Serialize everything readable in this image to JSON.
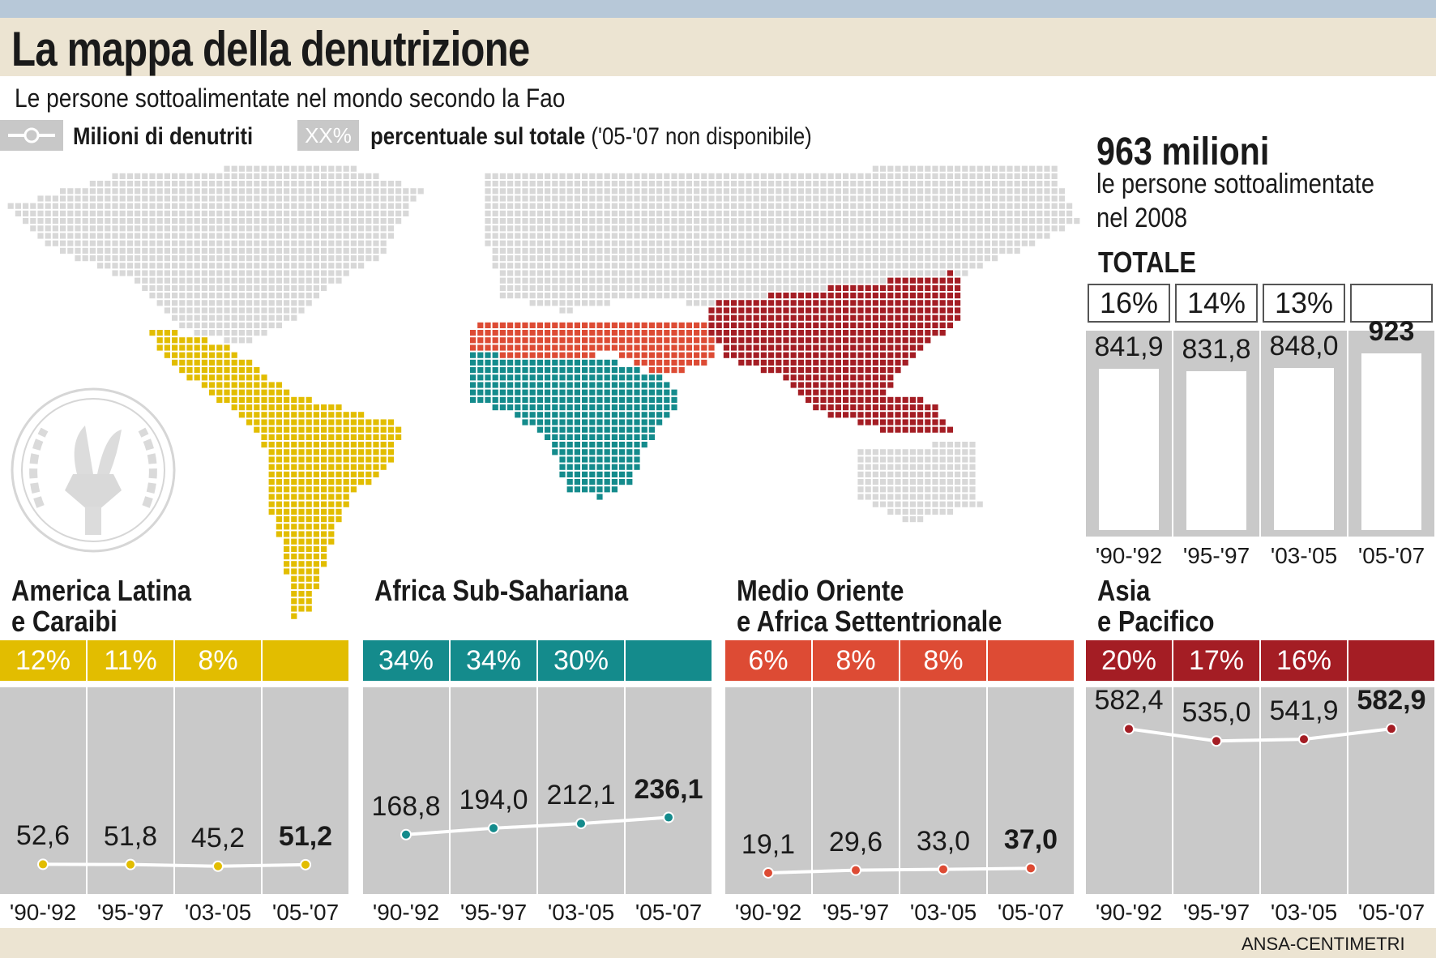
{
  "title": "La mappa della denutrizione",
  "subtitle": "Le persone sottoalimentate nel mondo secondo la Fao",
  "legend": {
    "line_label": "Milioni di denutriti",
    "pct_key": "XX%",
    "pct_label": "percentuale sul totale",
    "pct_note": "('05-'07 non disponibile)"
  },
  "summary": {
    "headline": "963 milioni",
    "line1": "le persone sottoalimentate",
    "line2": "nel 2008"
  },
  "credit": "ANSA-CENTIMETRI",
  "colors": {
    "latam": "#e2bd00",
    "africa": "#148b8c",
    "mena": "#dd4b34",
    "asia": "#a41d24",
    "map_grey": "#d8d8d8",
    "panel_grey": "#c9c9c9"
  },
  "periods": [
    "'90-'92",
    "'95-'97",
    "'03-'05",
    "'05-'07"
  ],
  "chart_data": [
    {
      "type": "bar",
      "title": "TOTALE",
      "categories": [
        "'90-'92",
        "'95-'97",
        "'03-'05",
        "'05-'07"
      ],
      "values": [
        841.9,
        831.8,
        848.0,
        923
      ],
      "value_labels": [
        "841,9",
        "831,8",
        "848,0",
        "923"
      ],
      "percent_labels": [
        "16%",
        "14%",
        "13%",
        ""
      ],
      "ylim": [
        0,
        1000
      ]
    },
    {
      "type": "line",
      "title": "America Latina e Caraibi",
      "title_lines": [
        "America Latina",
        "e Caraibi"
      ],
      "color": "#e2bd00",
      "categories": [
        "'90-'92",
        "'95-'97",
        "'03-'05",
        "'05-'07"
      ],
      "values": [
        52.6,
        51.8,
        45.2,
        51.2
      ],
      "value_labels": [
        "52,6",
        "51,8",
        "45,2",
        "51,2"
      ],
      "percent_labels": [
        "12%",
        "11%",
        "8%",
        ""
      ],
      "ylim": [
        0,
        650
      ]
    },
    {
      "type": "line",
      "title": "Africa Sub-Sahariana",
      "title_lines": [
        "Africa Sub-Sahariana",
        ""
      ],
      "color": "#148b8c",
      "categories": [
        "'90-'92",
        "'95-'97",
        "'03-'05",
        "'05-'07"
      ],
      "values": [
        168.8,
        194.0,
        212.1,
        236.1
      ],
      "value_labels": [
        "168,8",
        "194,0",
        "212,1",
        "236,1"
      ],
      "percent_labels": [
        "34%",
        "34%",
        "30%",
        ""
      ],
      "ylim": [
        0,
        650
      ]
    },
    {
      "type": "line",
      "title": "Medio Oriente e Africa Settentrionale",
      "title_lines": [
        "Medio Oriente",
        "e Africa Settentrionale"
      ],
      "color": "#dd4b34",
      "categories": [
        "'90-'92",
        "'95-'97",
        "'03-'05",
        "'05-'07"
      ],
      "values": [
        19.1,
        29.6,
        33.0,
        37.0
      ],
      "value_labels": [
        "19,1",
        "29,6",
        "33,0",
        "37,0"
      ],
      "percent_labels": [
        "6%",
        "8%",
        "8%",
        ""
      ],
      "ylim": [
        0,
        650
      ]
    },
    {
      "type": "line",
      "title": "Asia e Pacifico",
      "title_lines": [
        "Asia",
        "e Pacifico"
      ],
      "color": "#a41d24",
      "categories": [
        "'90-'92",
        "'95-'97",
        "'03-'05",
        "'05-'07"
      ],
      "values": [
        582.4,
        535.0,
        541.9,
        582.9
      ],
      "value_labels": [
        "582,4",
        "535,0",
        "541,9",
        "582,9"
      ],
      "percent_labels": [
        "20%",
        "17%",
        "16%",
        ""
      ],
      "ylim": [
        0,
        650
      ]
    }
  ]
}
